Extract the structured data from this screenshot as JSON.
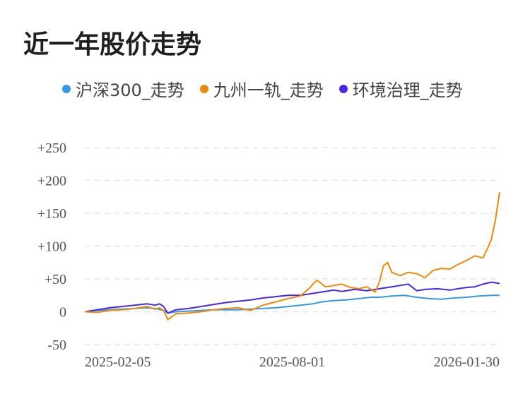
{
  "page_title": "近一年股价走势",
  "chart_data": {
    "type": "line",
    "title": "近一年股价走势",
    "xlabel": "",
    "ylabel": "",
    "ylim": [
      -50,
      250
    ],
    "yticks": [
      250,
      200,
      150,
      100,
      50,
      0,
      -50
    ],
    "ytick_labels": [
      "+250",
      "+200",
      "+150",
      "+100",
      "+50",
      "0",
      "-50"
    ],
    "x_tick_labels": [
      "2025-02-05",
      "2025-08-01",
      "2026-01-30"
    ],
    "x_tick_positions": [
      0.0,
      0.5,
      1.0
    ],
    "grid": true,
    "legend_position": "top",
    "series": [
      {
        "name": "沪深300_走势",
        "color": "#3399e8",
        "x": [
          0,
          0.03,
          0.06,
          0.09,
          0.12,
          0.15,
          0.17,
          0.19,
          0.2,
          0.22,
          0.25,
          0.28,
          0.31,
          0.34,
          0.37,
          0.4,
          0.43,
          0.46,
          0.49,
          0.52,
          0.55,
          0.57,
          0.6,
          0.63,
          0.66,
          0.69,
          0.71,
          0.74,
          0.77,
          0.8,
          0.83,
          0.86,
          0.89,
          0.92,
          0.95,
          0.98,
          1.0
        ],
        "values": [
          0,
          2,
          3,
          4,
          5,
          6,
          5,
          2,
          -2,
          0,
          1,
          2,
          3,
          3,
          3,
          4,
          5,
          6,
          8,
          10,
          12,
          15,
          17,
          18,
          20,
          22,
          22,
          24,
          25,
          22,
          20,
          19,
          21,
          22,
          24,
          25,
          25
        ]
      },
      {
        "name": "九州一轨_走势",
        "color": "#f0890a",
        "x": [
          0,
          0.03,
          0.06,
          0.09,
          0.12,
          0.15,
          0.17,
          0.18,
          0.19,
          0.2,
          0.22,
          0.25,
          0.28,
          0.31,
          0.34,
          0.37,
          0.4,
          0.43,
          0.46,
          0.49,
          0.52,
          0.54,
          0.55,
          0.56,
          0.58,
          0.6,
          0.62,
          0.64,
          0.66,
          0.68,
          0.7,
          0.71,
          0.72,
          0.73,
          0.74,
          0.76,
          0.78,
          0.8,
          0.82,
          0.84,
          0.86,
          0.88,
          0.9,
          0.92,
          0.94,
          0.96,
          0.97,
          0.98,
          0.99,
          1.0
        ],
        "values": [
          0,
          -1,
          2,
          3,
          5,
          8,
          4,
          6,
          2,
          -12,
          -3,
          -2,
          0,
          3,
          5,
          6,
          2,
          10,
          15,
          20,
          24,
          35,
          42,
          48,
          38,
          40,
          42,
          37,
          35,
          38,
          30,
          45,
          70,
          75,
          60,
          55,
          60,
          58,
          52,
          63,
          66,
          65,
          72,
          78,
          85,
          82,
          95,
          110,
          140,
          182
        ]
      },
      {
        "name": "环境治理_走势",
        "color": "#4b26e6",
        "x": [
          0,
          0.03,
          0.06,
          0.09,
          0.12,
          0.15,
          0.17,
          0.18,
          0.19,
          0.2,
          0.22,
          0.25,
          0.28,
          0.31,
          0.34,
          0.37,
          0.4,
          0.43,
          0.46,
          0.49,
          0.52,
          0.55,
          0.58,
          0.6,
          0.62,
          0.65,
          0.68,
          0.7,
          0.72,
          0.74,
          0.76,
          0.78,
          0.8,
          0.82,
          0.85,
          0.88,
          0.9,
          0.92,
          0.94,
          0.96,
          0.98,
          1.0
        ],
        "values": [
          0,
          3,
          6,
          8,
          10,
          12,
          10,
          12,
          8,
          -2,
          3,
          5,
          8,
          11,
          14,
          16,
          18,
          21,
          23,
          25,
          25,
          28,
          31,
          33,
          31,
          34,
          32,
          34,
          36,
          38,
          40,
          42,
          32,
          34,
          35,
          33,
          35,
          37,
          38,
          42,
          45,
          43
        ]
      }
    ]
  }
}
